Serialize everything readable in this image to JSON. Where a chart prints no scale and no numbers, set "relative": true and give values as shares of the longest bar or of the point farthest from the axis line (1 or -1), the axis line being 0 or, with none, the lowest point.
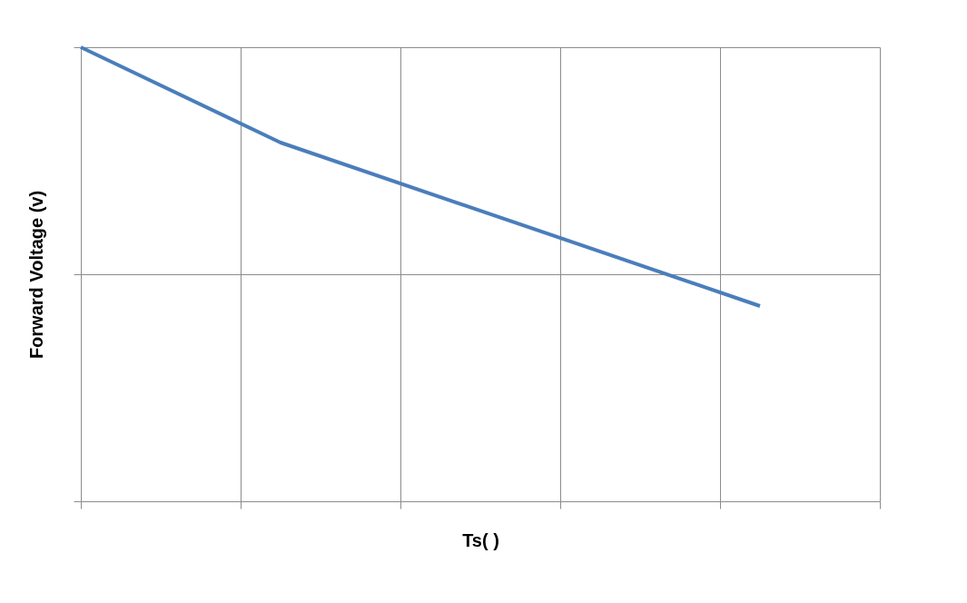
{
  "chart_data": {
    "type": "line",
    "relative": true,
    "xlabel": "Ts(    )",
    "ylabel": "Forward Voltage (v)",
    "categories": [
      null,
      null,
      null,
      null,
      null,
      null,
      null,
      null,
      null,
      null,
      null,
      null,
      null,
      null,
      null,
      null,
      null,
      null,
      null,
      null,
      null
    ],
    "series": [
      {
        "color": "#4a7ebb",
        "values": [
          1,
          null,
          null,
          null,
          null,
          0.79,
          null,
          null,
          null,
          null,
          null,
          null,
          null,
          null,
          null,
          null,
          null,
          0.43,
          null,
          null,
          null
        ]
      }
    ],
    "grid": true,
    "tick_labels": false
  }
}
